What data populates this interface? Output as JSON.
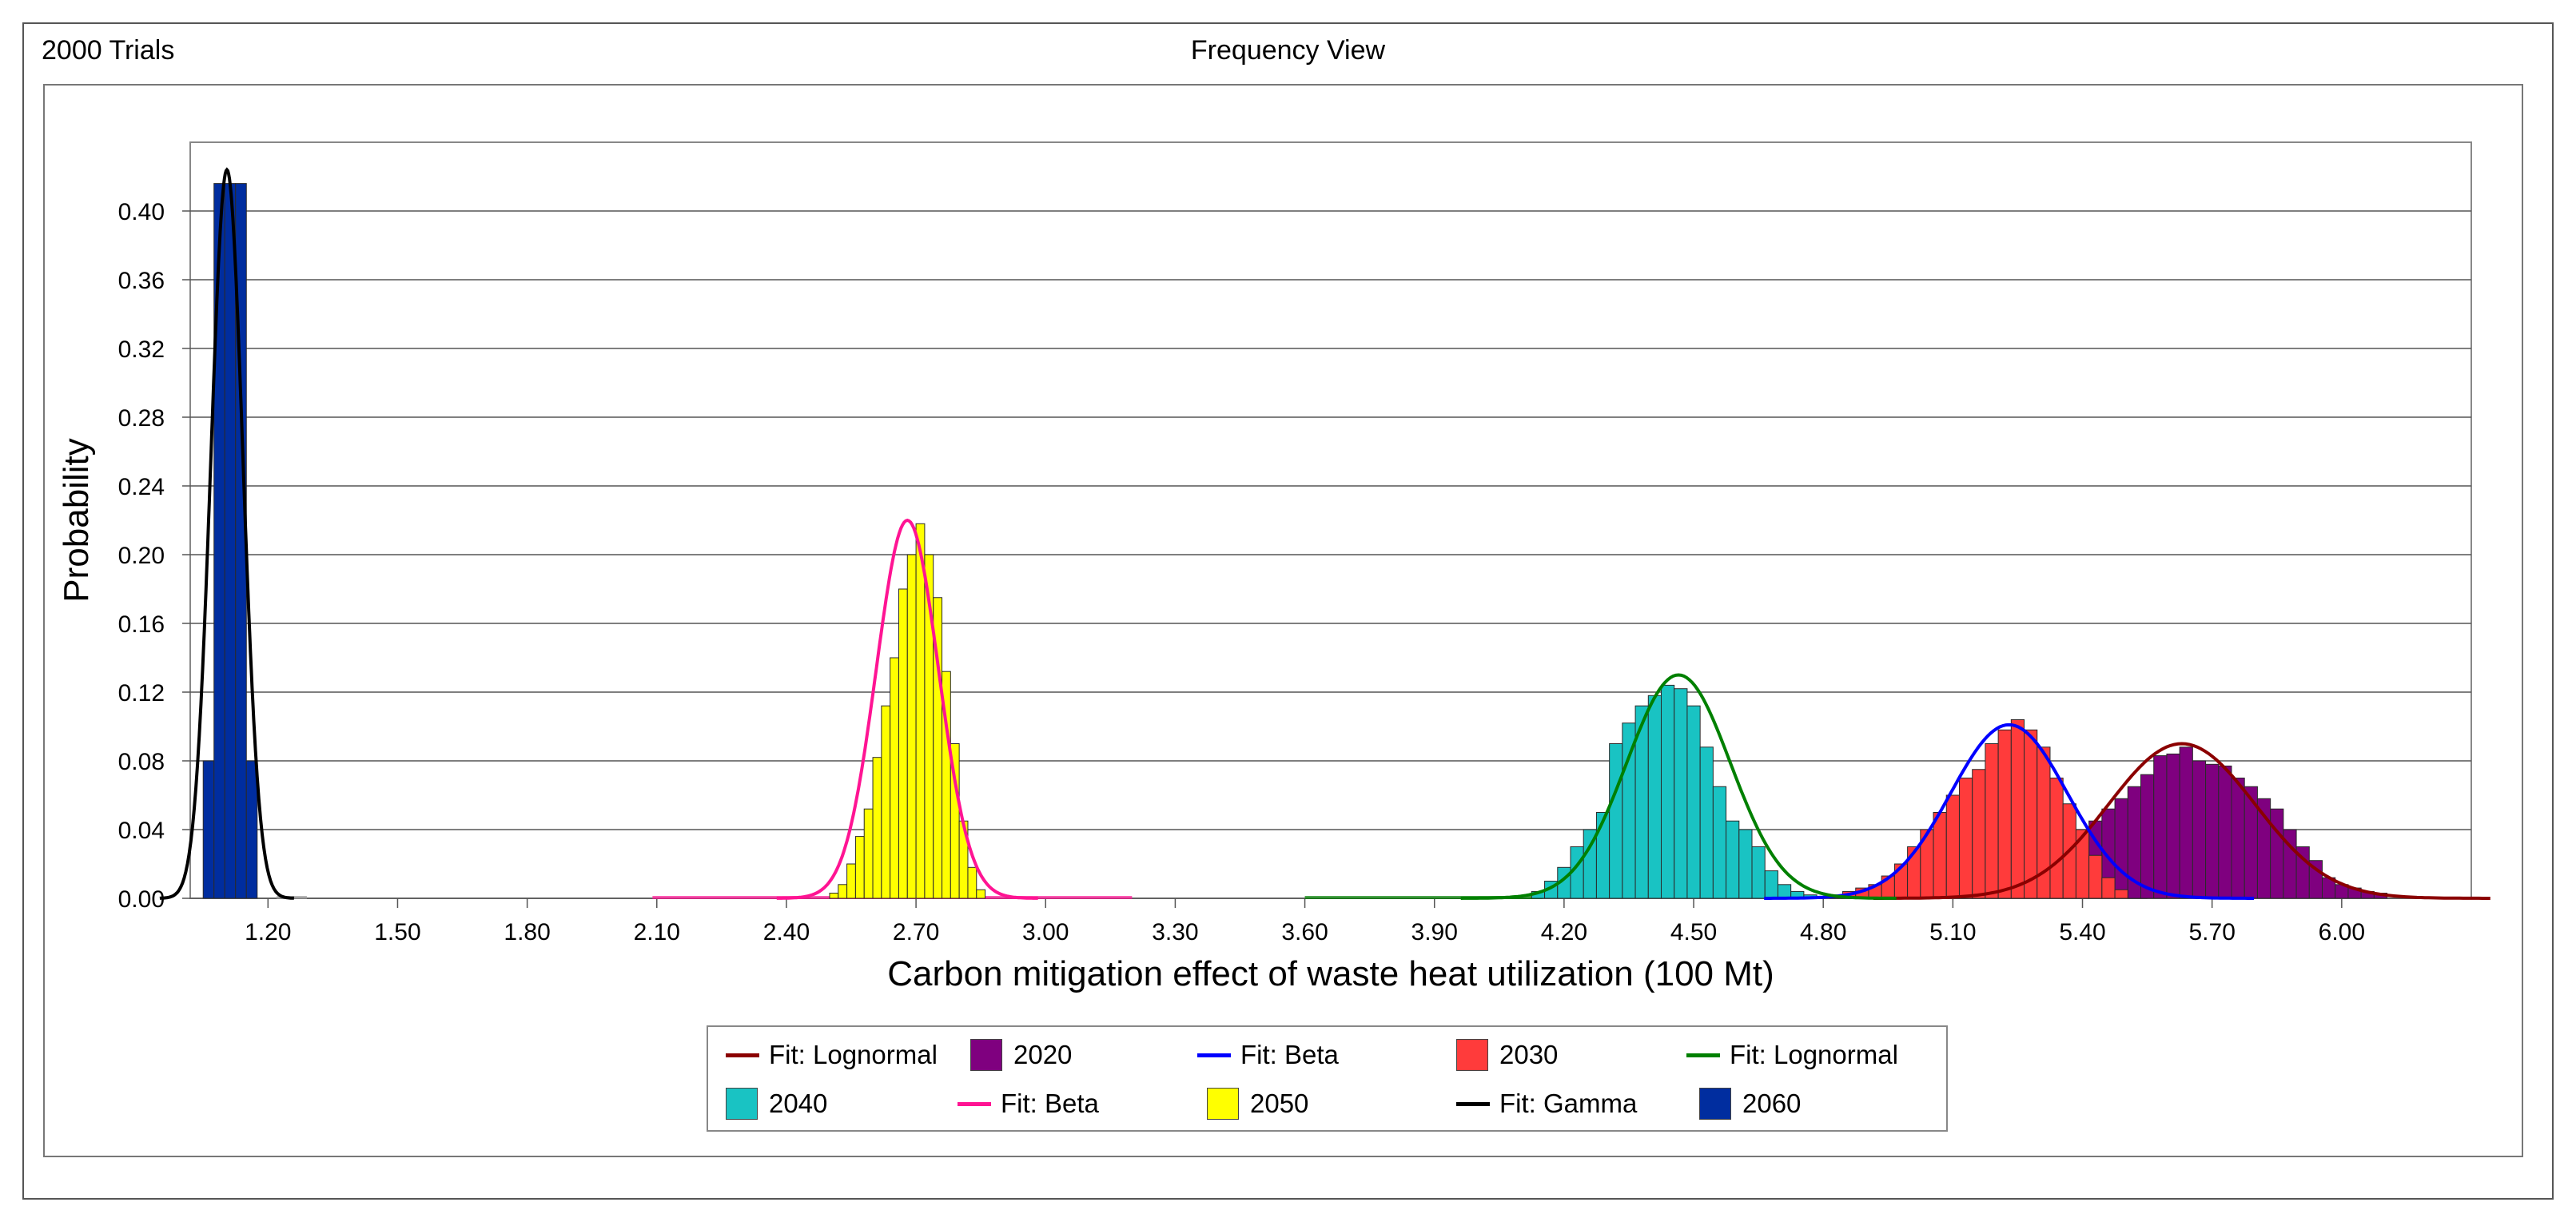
{
  "header": {
    "trials": "2000 Trials",
    "view_title": "Frequency View"
  },
  "chart_data": {
    "type": "bar",
    "xlabel": "Carbon mitigation effect of waste heat utilization (100 Mt)",
    "ylabel": "Probability",
    "xlim": [
      1.02,
      6.3
    ],
    "ylim": [
      0,
      0.44
    ],
    "xticks": [
      "1.20",
      "1.50",
      "1.80",
      "2.10",
      "2.40",
      "2.70",
      "3.00",
      "3.30",
      "3.60",
      "3.90",
      "4.20",
      "4.50",
      "4.80",
      "5.10",
      "5.40",
      "5.70",
      "6.00"
    ],
    "yticks": [
      "0.00",
      "0.04",
      "0.08",
      "0.12",
      "0.16",
      "0.20",
      "0.24",
      "0.28",
      "0.32",
      "0.36",
      "0.40"
    ],
    "grid": "horizontal",
    "legend_position": "bottom",
    "series": [
      {
        "name": "2020",
        "color": "#7f007f",
        "bin_width": 0.03,
        "x": [
          5.04,
          5.07,
          5.1,
          5.13,
          5.16,
          5.19,
          5.22,
          5.25,
          5.28,
          5.31,
          5.34,
          5.37,
          5.4,
          5.43,
          5.46,
          5.49,
          5.52,
          5.55,
          5.58,
          5.61,
          5.64,
          5.67,
          5.7,
          5.73,
          5.76,
          5.79,
          5.82,
          5.85,
          5.88,
          5.91,
          5.94,
          5.97,
          6.0,
          6.03,
          6.06,
          6.09
        ],
        "values": [
          0.002,
          0.002,
          0.003,
          0.004,
          0.006,
          0.008,
          0.01,
          0.013,
          0.016,
          0.02,
          0.026,
          0.033,
          0.04,
          0.045,
          0.052,
          0.058,
          0.065,
          0.072,
          0.083,
          0.084,
          0.088,
          0.08,
          0.078,
          0.077,
          0.07,
          0.065,
          0.058,
          0.052,
          0.04,
          0.03,
          0.022,
          0.012,
          0.008,
          0.006,
          0.004,
          0.003
        ],
        "fit": {
          "name": "Fit: Lognormal",
          "color": "#8b0000",
          "mean": 5.63,
          "sd": 0.17,
          "peak": 0.09
        }
      },
      {
        "name": "2030",
        "color": "#ff3b3b",
        "bin_width": 0.03,
        "x": [
          4.83,
          4.86,
          4.89,
          4.92,
          4.95,
          4.98,
          5.01,
          5.04,
          5.07,
          5.1,
          5.13,
          5.16,
          5.19,
          5.22,
          5.25,
          5.28,
          5.31,
          5.34,
          5.37,
          5.4,
          5.43,
          5.46,
          5.49
        ],
        "values": [
          0.002,
          0.004,
          0.006,
          0.008,
          0.013,
          0.02,
          0.03,
          0.04,
          0.05,
          0.06,
          0.07,
          0.075,
          0.09,
          0.098,
          0.104,
          0.098,
          0.088,
          0.07,
          0.055,
          0.04,
          0.025,
          0.012,
          0.005
        ],
        "fit": {
          "name": "Fit: Beta",
          "color": "#0000ff",
          "mean": 5.23,
          "sd": 0.135,
          "peak": 0.101
        }
      },
      {
        "name": "2040",
        "color": "#19c3c3",
        "bin_width": 0.03,
        "x": [
          4.14,
          4.17,
          4.2,
          4.23,
          4.26,
          4.29,
          4.32,
          4.35,
          4.38,
          4.41,
          4.44,
          4.47,
          4.5,
          4.53,
          4.56,
          4.59,
          4.62,
          4.65,
          4.68,
          4.71,
          4.74,
          4.77
        ],
        "values": [
          0.004,
          0.01,
          0.018,
          0.03,
          0.04,
          0.05,
          0.09,
          0.102,
          0.112,
          0.118,
          0.124,
          0.122,
          0.112,
          0.088,
          0.065,
          0.045,
          0.04,
          0.03,
          0.016,
          0.008,
          0.004,
          0.002
        ],
        "fit": {
          "name": "Fit: Lognormal",
          "color": "#008000",
          "mean": 4.465,
          "sd": 0.12,
          "peak": 0.13
        }
      },
      {
        "name": "2050",
        "color": "#ffff00",
        "bin_width": 0.02,
        "x": [
          2.51,
          2.53,
          2.55,
          2.57,
          2.59,
          2.61,
          2.63,
          2.65,
          2.67,
          2.69,
          2.71,
          2.73,
          2.75,
          2.77,
          2.79,
          2.81,
          2.83,
          2.85
        ],
        "values": [
          0.003,
          0.008,
          0.02,
          0.036,
          0.052,
          0.082,
          0.112,
          0.14,
          0.18,
          0.2,
          0.218,
          0.2,
          0.175,
          0.132,
          0.09,
          0.045,
          0.018,
          0.005
        ],
        "fit": {
          "name": "Fit: Beta",
          "color": "#ff1493",
          "mean": 2.68,
          "sd": 0.072,
          "peak": 0.22
        }
      },
      {
        "name": "2060",
        "color": "#002d9f",
        "bin_width": 0.025,
        "x": [
          1.0625,
          1.0875,
          1.1125,
          1.1375,
          1.1625
        ],
        "values": [
          0.08,
          0.416,
          0.416,
          0.416,
          0.08
        ],
        "fit": {
          "name": "Fit: Gamma",
          "color": "#000000",
          "mean": 1.105,
          "sd": 0.037,
          "peak": 0.424
        }
      }
    ]
  },
  "legend": [
    {
      "kind": "line",
      "label": "Fit: Lognormal",
      "color": "#8b0000"
    },
    {
      "kind": "swatch",
      "label": "2020",
      "color": "#7f007f"
    },
    {
      "kind": "line",
      "label": "Fit: Beta",
      "color": "#0000ff"
    },
    {
      "kind": "swatch",
      "label": "2030",
      "color": "#ff3b3b"
    },
    {
      "kind": "line",
      "label": "Fit: Lognormal",
      "color": "#008000"
    },
    {
      "kind": "swatch",
      "label": "2040",
      "color": "#19c3c3"
    },
    {
      "kind": "line",
      "label": "Fit: Beta",
      "color": "#ff1493"
    },
    {
      "kind": "swatch",
      "label": "2050",
      "color": "#ffff00"
    },
    {
      "kind": "line",
      "label": "Fit: Gamma",
      "color": "#000000"
    },
    {
      "kind": "swatch",
      "label": "2060",
      "color": "#002d9f"
    }
  ]
}
